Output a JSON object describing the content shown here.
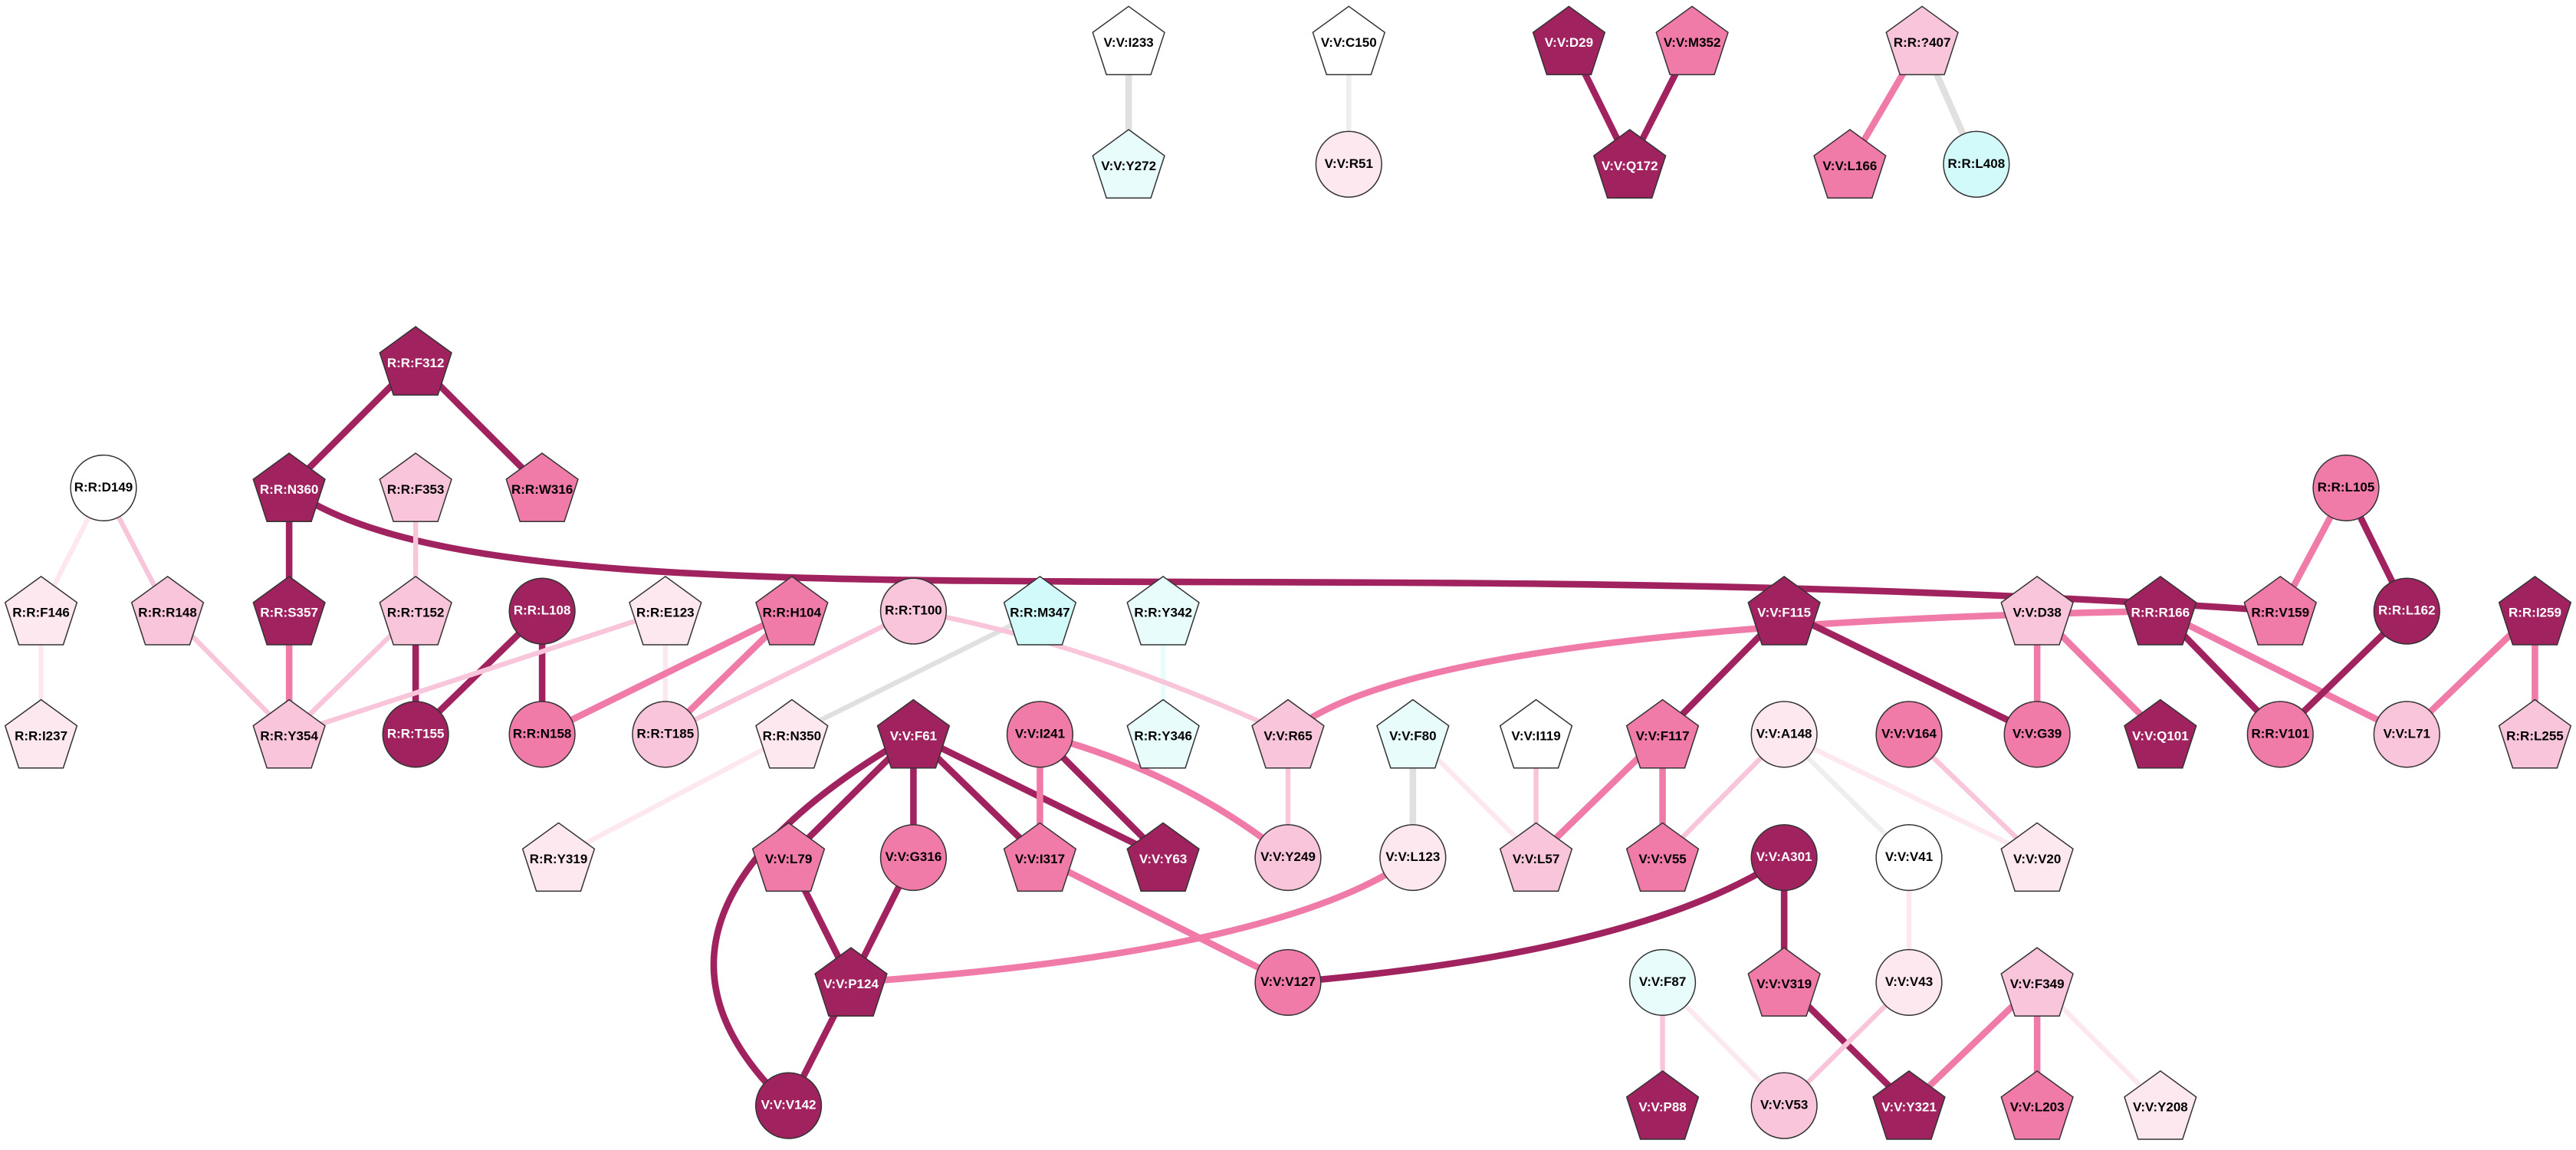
{
  "nodes": [
    {
      "label": "V:V:I233"
    },
    {
      "label": "V:V:Y272"
    },
    {
      "label": "V:V:C150"
    },
    {
      "label": "V:V:R51"
    },
    {
      "label": "V:V:D29"
    },
    {
      "label": "V:V:M352"
    },
    {
      "label": "V:V:Q172"
    },
    {
      "label": "R:R:?407"
    },
    {
      "label": "V:V:L166"
    },
    {
      "label": "R:R:L408"
    },
    {
      "label": "R:R:F312"
    },
    {
      "label": "R:R:N360"
    },
    {
      "label": "R:R:W316"
    },
    {
      "label": "R:R:D149"
    },
    {
      "label": "R:R:F353"
    },
    {
      "label": "R:R:F146"
    },
    {
      "label": "R:R:R148"
    },
    {
      "label": "R:R:S357"
    },
    {
      "label": "R:R:T152"
    },
    {
      "label": "R:R:L108"
    },
    {
      "label": "R:R:E123"
    },
    {
      "label": "R:R:H104"
    },
    {
      "label": "R:R:T100"
    },
    {
      "label": "R:R:M347"
    },
    {
      "label": "R:R:Y342"
    },
    {
      "label": "R:R:I237"
    },
    {
      "label": "R:R:Y354"
    },
    {
      "label": "R:R:T155"
    },
    {
      "label": "R:R:N158"
    },
    {
      "label": "R:R:T185"
    },
    {
      "label": "R:R:N350"
    },
    {
      "label": "V:V:F61"
    },
    {
      "label": "V:V:I241"
    },
    {
      "label": "R:R:Y346"
    },
    {
      "label": "V:V:R65"
    },
    {
      "label": "V:V:F80"
    },
    {
      "label": "V:V:I119"
    },
    {
      "label": "V:V:F115"
    },
    {
      "label": "V:V:A148"
    },
    {
      "label": "V:V:V164"
    },
    {
      "label": "V:V:D38"
    },
    {
      "label": "R:R:R166"
    },
    {
      "label": "R:R:L105"
    },
    {
      "label": "R:R:V159"
    },
    {
      "label": "R:R:L162"
    },
    {
      "label": "R:R:I259"
    },
    {
      "label": "V:V:F117"
    },
    {
      "label": "V:V:G39"
    },
    {
      "label": "V:V:Q101"
    },
    {
      "label": "R:R:V101"
    },
    {
      "label": "V:V:L71"
    },
    {
      "label": "R:R:L255"
    },
    {
      "label": "R:R:Y319"
    },
    {
      "label": "V:V:L79"
    },
    {
      "label": "V:V:G316"
    },
    {
      "label": "V:V:I317"
    },
    {
      "label": "V:V:Y63"
    },
    {
      "label": "V:V:Y249"
    },
    {
      "label": "V:V:L123"
    },
    {
      "label": "V:V:L57"
    },
    {
      "label": "V:V:V55"
    },
    {
      "label": "V:V:A301"
    },
    {
      "label": "V:V:V41"
    },
    {
      "label": "V:V:V20"
    },
    {
      "label": "V:V:P124"
    },
    {
      "label": "V:V:V127"
    },
    {
      "label": "V:V:F87"
    },
    {
      "label": "V:V:V319"
    },
    {
      "label": "V:V:V43"
    },
    {
      "label": "V:V:F349"
    },
    {
      "label": "V:V:V142"
    },
    {
      "label": "V:V:P88"
    },
    {
      "label": "V:V:V53"
    },
    {
      "label": "V:V:Y321"
    },
    {
      "label": "V:V:L203"
    },
    {
      "label": "V:V:Y208"
    }
  ]
}
